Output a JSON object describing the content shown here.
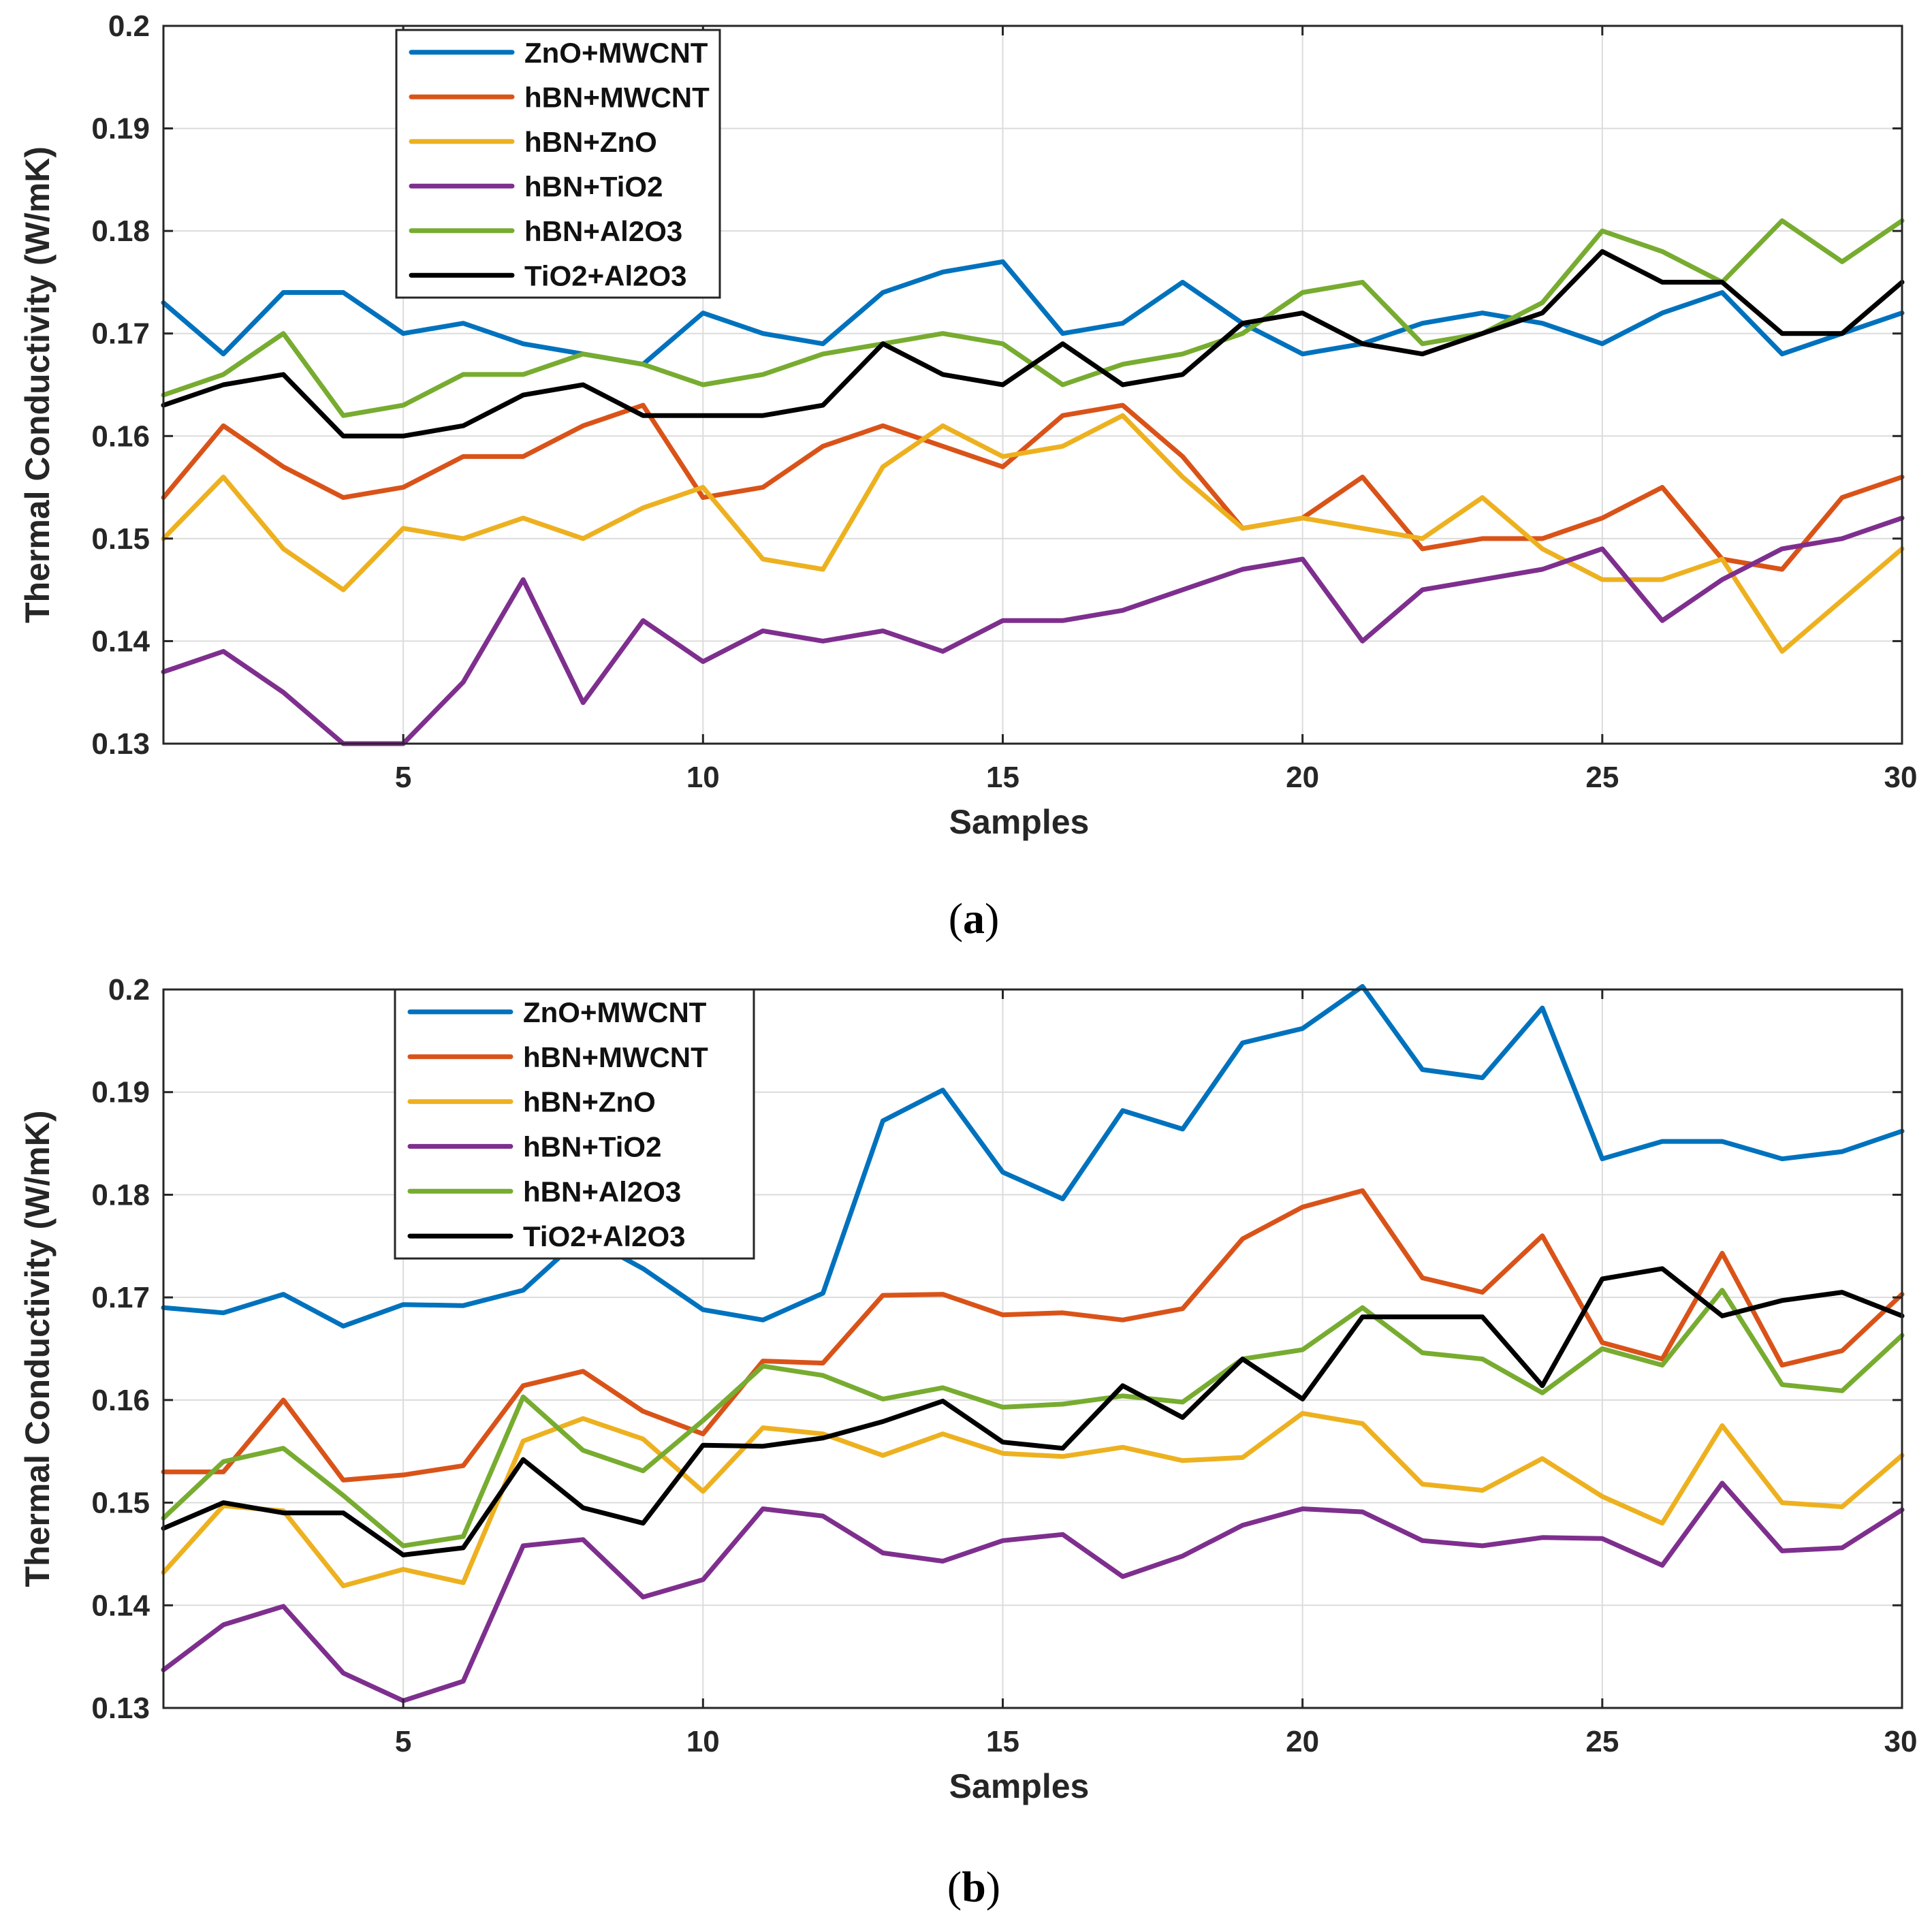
{
  "figure": {
    "panel_a_label": "a",
    "panel_b_label": "b"
  },
  "chart_data": [
    {
      "type": "line",
      "panel": "a",
      "title": "",
      "xlabel": "Samples",
      "ylabel": "Thermal Conductivity (W/mK)",
      "xlim": [
        1,
        30
      ],
      "ylim": [
        0.13,
        0.2
      ],
      "xticks": [
        5,
        10,
        15,
        20,
        25,
        30
      ],
      "xtick_labels": [
        "5",
        "10",
        "15",
        "20",
        "25",
        "30"
      ],
      "yticks": [
        0.13,
        0.14,
        0.15,
        0.16,
        0.17,
        0.18,
        0.19,
        0.2
      ],
      "ytick_labels": [
        "0.13",
        "0.14",
        "0.15",
        "0.16",
        "0.17",
        "0.18",
        "0.19",
        "0.2"
      ],
      "grid": true,
      "legend_position": "top-left",
      "x": [
        1,
        2,
        3,
        4,
        5,
        6,
        7,
        8,
        9,
        10,
        11,
        12,
        13,
        14,
        15,
        16,
        17,
        18,
        19,
        20,
        21,
        22,
        23,
        24,
        25,
        26,
        27,
        28,
        29,
        30
      ],
      "series": [
        {
          "name": "ZnO+MWCNT",
          "color": "#0072BD",
          "values": [
            0.173,
            0.168,
            0.174,
            0.174,
            0.17,
            0.171,
            0.169,
            0.168,
            0.167,
            0.172,
            0.17,
            0.169,
            0.174,
            0.176,
            0.177,
            0.17,
            0.171,
            0.175,
            0.171,
            0.168,
            0.169,
            0.171,
            0.172,
            0.171,
            0.169,
            0.172,
            0.174,
            0.168,
            0.17,
            0.172
          ]
        },
        {
          "name": "hBN+MWCNT",
          "color": "#D95319",
          "values": [
            0.154,
            0.161,
            0.157,
            0.154,
            0.155,
            0.158,
            0.158,
            0.161,
            0.163,
            0.154,
            0.155,
            0.159,
            0.161,
            0.159,
            0.157,
            0.162,
            0.163,
            0.158,
            0.151,
            0.152,
            0.156,
            0.149,
            0.15,
            0.15,
            0.152,
            0.155,
            0.148,
            0.147,
            0.154,
            0.156
          ]
        },
        {
          "name": "hBN+ZnO",
          "color": "#EDB120",
          "values": [
            0.15,
            0.156,
            0.149,
            0.145,
            0.151,
            0.15,
            0.152,
            0.15,
            0.153,
            0.155,
            0.148,
            0.147,
            0.157,
            0.161,
            0.158,
            0.159,
            0.162,
            0.156,
            0.151,
            0.152,
            0.151,
            0.15,
            0.154,
            0.149,
            0.146,
            0.146,
            0.148,
            0.139,
            0.144,
            0.149
          ]
        },
        {
          "name": "hBN+TiO2",
          "color": "#7E2F8E",
          "values": [
            0.137,
            0.139,
            0.135,
            0.13,
            0.13,
            0.136,
            0.146,
            0.134,
            0.142,
            0.138,
            0.141,
            0.14,
            0.141,
            0.139,
            0.142,
            0.142,
            0.143,
            0.145,
            0.147,
            0.148,
            0.14,
            0.145,
            0.146,
            0.147,
            0.149,
            0.142,
            0.146,
            0.149,
            0.15,
            0.152
          ]
        },
        {
          "name": "hBN+Al2O3",
          "color": "#77AC30",
          "values": [
            0.164,
            0.166,
            0.17,
            0.162,
            0.163,
            0.166,
            0.166,
            0.168,
            0.167,
            0.165,
            0.166,
            0.168,
            0.169,
            0.17,
            0.169,
            0.165,
            0.167,
            0.168,
            0.17,
            0.174,
            0.175,
            0.169,
            0.17,
            0.173,
            0.18,
            0.178,
            0.175,
            0.181,
            0.177,
            0.181
          ]
        },
        {
          "name": "TiO2+Al2O3",
          "color": "#000000",
          "values": [
            0.163,
            0.165,
            0.166,
            0.16,
            0.16,
            0.161,
            0.164,
            0.165,
            0.162,
            0.162,
            0.162,
            0.163,
            0.169,
            0.166,
            0.165,
            0.169,
            0.165,
            0.166,
            0.171,
            0.172,
            0.169,
            0.168,
            0.17,
            0.172,
            0.178,
            0.175,
            0.175,
            0.17,
            0.17,
            0.175
          ]
        }
      ]
    },
    {
      "type": "line",
      "panel": "b",
      "title": "",
      "xlabel": "Samples",
      "ylabel": "Thermal Conductivity (W/mK)",
      "xlim": [
        1,
        30
      ],
      "ylim": [
        0.13,
        0.2
      ],
      "xticks": [
        5,
        10,
        15,
        20,
        25,
        30
      ],
      "xtick_labels": [
        "5",
        "10",
        "15",
        "20",
        "25",
        "30"
      ],
      "yticks": [
        0.13,
        0.14,
        0.15,
        0.16,
        0.17,
        0.18,
        0.19,
        0.2
      ],
      "ytick_labels": [
        "0.13",
        "0.14",
        "0.15",
        "0.16",
        "0.17",
        "0.18",
        "0.19",
        "0.2"
      ],
      "grid": true,
      "legend_position": "top-left",
      "x": [
        1,
        2,
        3,
        4,
        5,
        6,
        7,
        8,
        9,
        10,
        11,
        12,
        13,
        14,
        15,
        16,
        17,
        18,
        19,
        20,
        21,
        22,
        23,
        24,
        25,
        26,
        27,
        28,
        29,
        30
      ],
      "series": [
        {
          "name": "ZnO+MWCNT",
          "color": "#0072BD",
          "values": [
            0.169,
            0.1685,
            0.1703,
            0.1672,
            0.1693,
            0.1692,
            0.1707,
            0.176,
            0.1728,
            0.1688,
            0.1678,
            0.1704,
            0.1872,
            0.1902,
            0.1822,
            0.1796,
            0.1882,
            0.1864,
            0.1948,
            0.1962,
            0.2003,
            0.1922,
            0.1914,
            0.1982,
            0.1835,
            0.1852,
            0.1852,
            0.1835,
            0.1842,
            0.1862
          ]
        },
        {
          "name": "hBN+MWCNT",
          "color": "#D95319",
          "values": [
            0.153,
            0.153,
            0.16,
            0.1522,
            0.1527,
            0.1536,
            0.1614,
            0.1628,
            0.1589,
            0.1567,
            0.1638,
            0.1636,
            0.1702,
            0.1703,
            0.1683,
            0.1685,
            0.1678,
            0.1689,
            0.1757,
            0.1788,
            0.1804,
            0.1719,
            0.1705,
            0.176,
            0.1656,
            0.164,
            0.1743,
            0.1634,
            0.1648,
            0.1703
          ]
        },
        {
          "name": "hBN+ZnO",
          "color": "#EDB120",
          "values": [
            0.1432,
            0.1497,
            0.1492,
            0.1419,
            0.1435,
            0.1422,
            0.156,
            0.1582,
            0.1562,
            0.1511,
            0.1573,
            0.1567,
            0.1546,
            0.1567,
            0.1548,
            0.1545,
            0.1554,
            0.1541,
            0.1544,
            0.1587,
            0.1577,
            0.1518,
            0.1512,
            0.1543,
            0.1506,
            0.148,
            0.1575,
            0.15,
            0.1496,
            0.1546
          ]
        },
        {
          "name": "hBN+TiO2",
          "color": "#7E2F8E",
          "values": [
            0.1337,
            0.1381,
            0.1399,
            0.1334,
            0.1307,
            0.1326,
            0.1458,
            0.1464,
            0.1408,
            0.1425,
            0.1494,
            0.1487,
            0.1451,
            0.1443,
            0.1463,
            0.1469,
            0.1428,
            0.1448,
            0.1478,
            0.1494,
            0.1491,
            0.1463,
            0.1458,
            0.1466,
            0.1465,
            0.1439,
            0.1519,
            0.1453,
            0.1456,
            0.1493
          ]
        },
        {
          "name": "hBN+Al2O3",
          "color": "#77AC30",
          "values": [
            0.1485,
            0.154,
            0.1553,
            0.1507,
            0.1458,
            0.1467,
            0.1603,
            0.1551,
            0.1531,
            0.158,
            0.1633,
            0.1624,
            0.1601,
            0.1612,
            0.1593,
            0.1596,
            0.1604,
            0.1598,
            0.164,
            0.1649,
            0.169,
            0.1646,
            0.164,
            0.1607,
            0.165,
            0.1634,
            0.1707,
            0.1615,
            0.1609,
            0.1663
          ]
        },
        {
          "name": "TiO2+Al2O3",
          "color": "#000000",
          "values": [
            0.1475,
            0.15,
            0.149,
            0.149,
            0.1449,
            0.1456,
            0.1542,
            0.1495,
            0.148,
            0.1556,
            0.1555,
            0.1563,
            0.1579,
            0.1599,
            0.1559,
            0.1553,
            0.1614,
            0.1583,
            0.164,
            0.1601,
            0.1681,
            0.1681,
            0.1681,
            0.1614,
            0.1718,
            0.1728,
            0.1682,
            0.1697,
            0.1705,
            0.1682
          ]
        }
      ]
    }
  ]
}
